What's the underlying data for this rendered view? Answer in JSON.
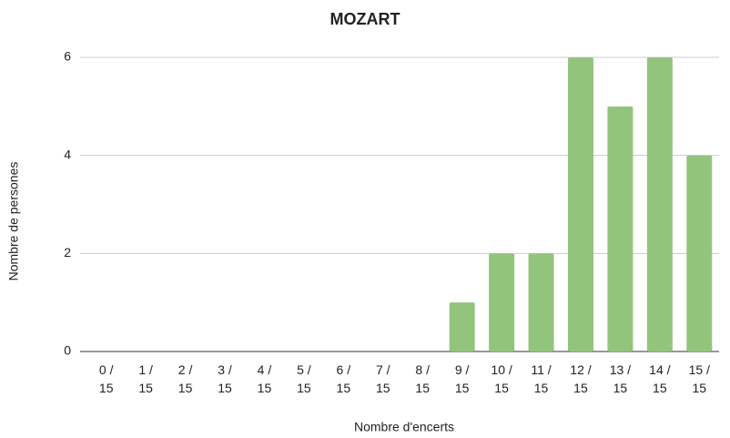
{
  "chart_data": {
    "type": "bar",
    "title": "MOZART",
    "x_label": "Nombre d'encerts",
    "y_label": "Nombre de persones",
    "categories": [
      "0 / 15",
      "1 / 15",
      "2 / 15",
      "3 / 15",
      "4 / 15",
      "5 / 15",
      "6 / 15",
      "7 / 15",
      "8 / 15",
      "9 / 15",
      "10 / 15",
      "11 / 15",
      "12 / 15",
      "13 / 15",
      "14 / 15",
      "15 / 15"
    ],
    "values": [
      0,
      0,
      0,
      0,
      0,
      0,
      0,
      0,
      0,
      1,
      2,
      2,
      6,
      5,
      6,
      4
    ],
    "color": "#93c47d",
    "ylim": [
      0,
      6
    ],
    "yticks": [
      0,
      2,
      4,
      6
    ],
    "grid": true
  }
}
